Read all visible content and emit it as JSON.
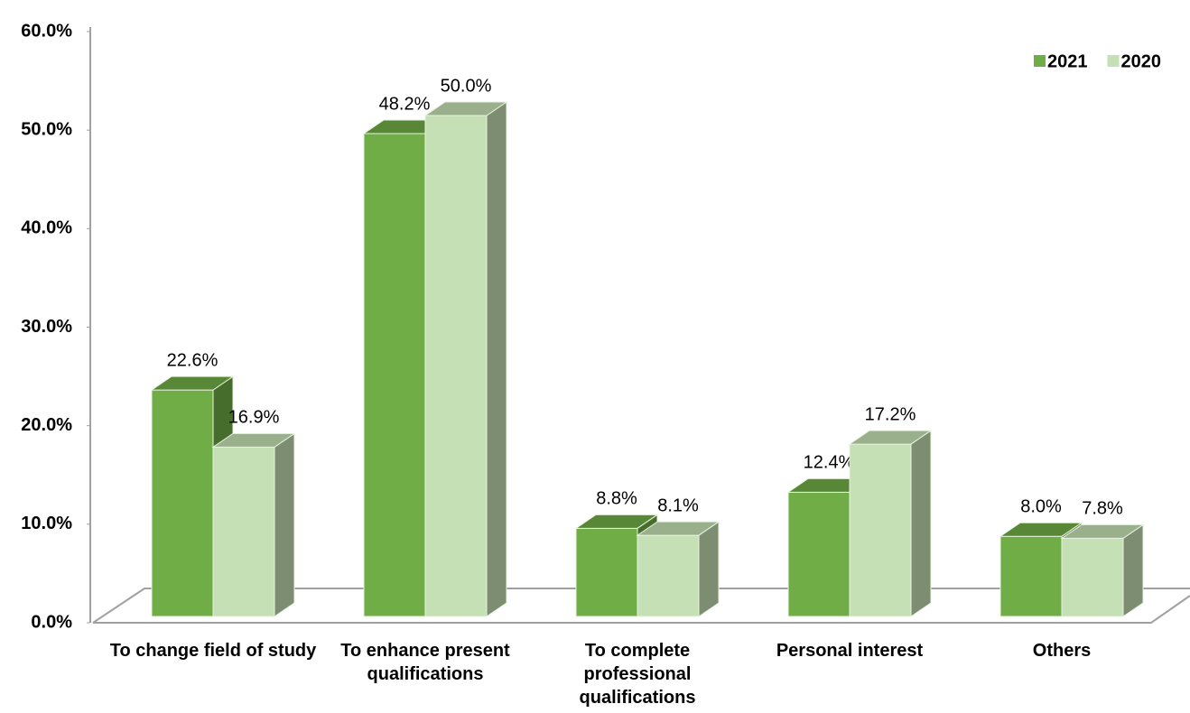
{
  "chart_data": {
    "type": "bar3d",
    "categories": [
      "To change field of study",
      "To enhance present qualifications",
      "To complete professional qualifications",
      "Personal interest",
      "Others"
    ],
    "series": [
      {
        "name": "2021",
        "color": "#70ad47",
        "values": [
          22.6,
          48.2,
          8.8,
          12.4,
          8.0
        ],
        "value_labels": [
          "22.6%",
          "48.2%",
          "8.8%",
          "12.4%",
          "8.0%"
        ]
      },
      {
        "name": "2020",
        "color": "#c5e0b4",
        "values": [
          16.9,
          50.0,
          8.1,
          17.2,
          7.8
        ],
        "value_labels": [
          "16.9%",
          "50.0%",
          "8.1%",
          "17.2%",
          "7.8%"
        ]
      }
    ],
    "ylim": [
      0,
      60
    ],
    "yticks": [
      {
        "value": 0,
        "label": "0.0%"
      },
      {
        "value": 10,
        "label": "10.0%"
      },
      {
        "value": 20,
        "label": "20.0%"
      },
      {
        "value": 30,
        "label": "30.0%"
      },
      {
        "value": 40,
        "label": "40.0%"
      },
      {
        "value": 50,
        "label": "50.0%"
      },
      {
        "value": 60,
        "label": "60.0%"
      }
    ],
    "legend": "top-right"
  }
}
